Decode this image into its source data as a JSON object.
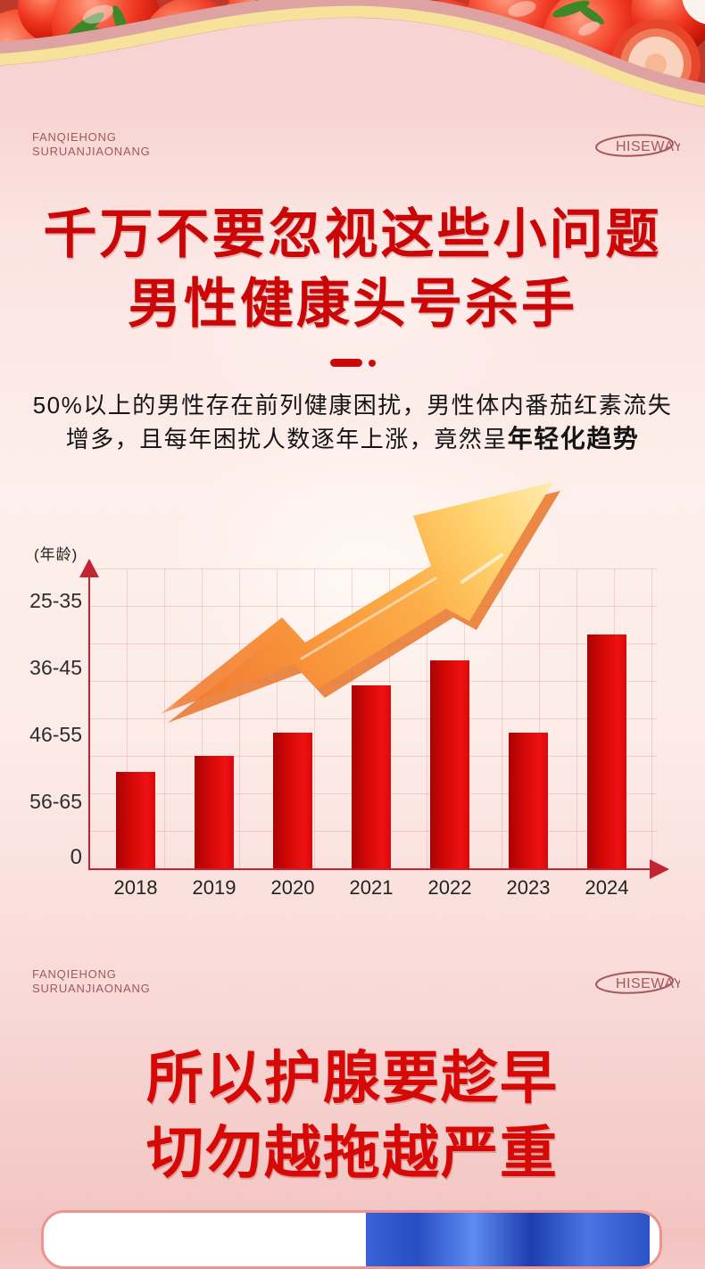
{
  "brand": {
    "line1": "FANQIEHONG",
    "line2": "SURUANJIAONANG",
    "logo": "HISEWAY"
  },
  "hero": {
    "title_line1": "千万不要忽视这些小问题",
    "title_line2": "男性健康头号杀手",
    "subtitle_line1": "50%以上的男性存在前列健康困扰，男性体内番茄红素流失",
    "subtitle_line2_normal": "增多，且每年困扰人数逐年上涨，竟然呈",
    "subtitle_line2_bold": "年轻化趋势"
  },
  "chart_data": {
    "type": "bar",
    "y_axis_label": "(年龄)",
    "y_tick_labels": [
      "25-35",
      "36-45",
      "46-55",
      "56-65"
    ],
    "origin_label": "0",
    "categories": [
      "2018",
      "2019",
      "2020",
      "2021",
      "2022",
      "2023",
      "2024"
    ],
    "values": [
      1.47,
      1.71,
      2.05,
      2.76,
      3.13,
      2.05,
      3.52
    ],
    "value_scale": "age-band axis levels: 1 = 56-65 gridline, 2 = 46-55, 3 = 36-45, 4 = 25-35",
    "grid": true,
    "legend": false,
    "bar_color": "#e00c0c",
    "axis_color": "#c22531",
    "annotation": "upward zigzag orange-yellow trend arrow over the bars"
  },
  "footer": {
    "title_line1": "所以护腺要趁早",
    "title_line2": "切勿越拖越严重"
  },
  "colors": {
    "accent_red": "#ce0707",
    "title_red": "#cb0606",
    "brand_maroon": "#a2585d",
    "text_dark": "#151515",
    "wave_yellow": "#f7e29b",
    "wave_dark_pink": "#dfa2a2"
  }
}
